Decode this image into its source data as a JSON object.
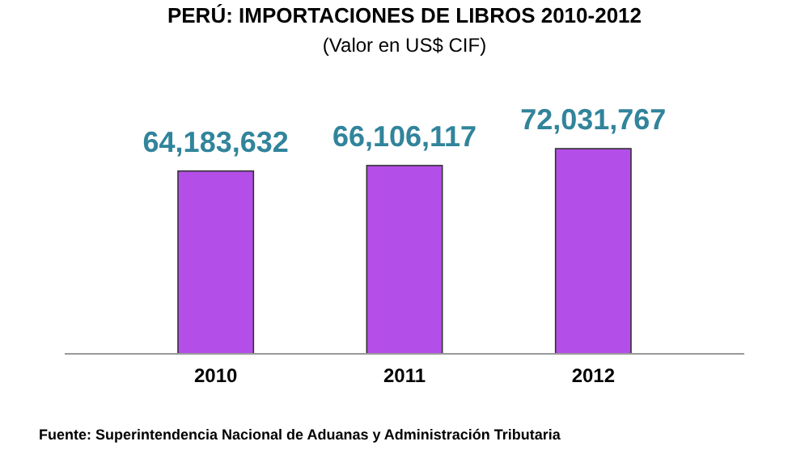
{
  "chart_data": {
    "type": "bar",
    "title": "PERÚ: IMPORTACIONES DE LIBROS 2010-2012",
    "subtitle": "(Valor en US$ CIF)",
    "categories": [
      "2010",
      "2011",
      "2012"
    ],
    "values": [
      64183632,
      66106117,
      72031767
    ],
    "color": "#b44ee8",
    "value_labels": [
      "64,183,632",
      "66,106,117",
      "72,031,767"
    ],
    "annotations": [
      "Fuente: Superintendencia Nacional de Aduanas y Administración Tributaria"
    ]
  }
}
